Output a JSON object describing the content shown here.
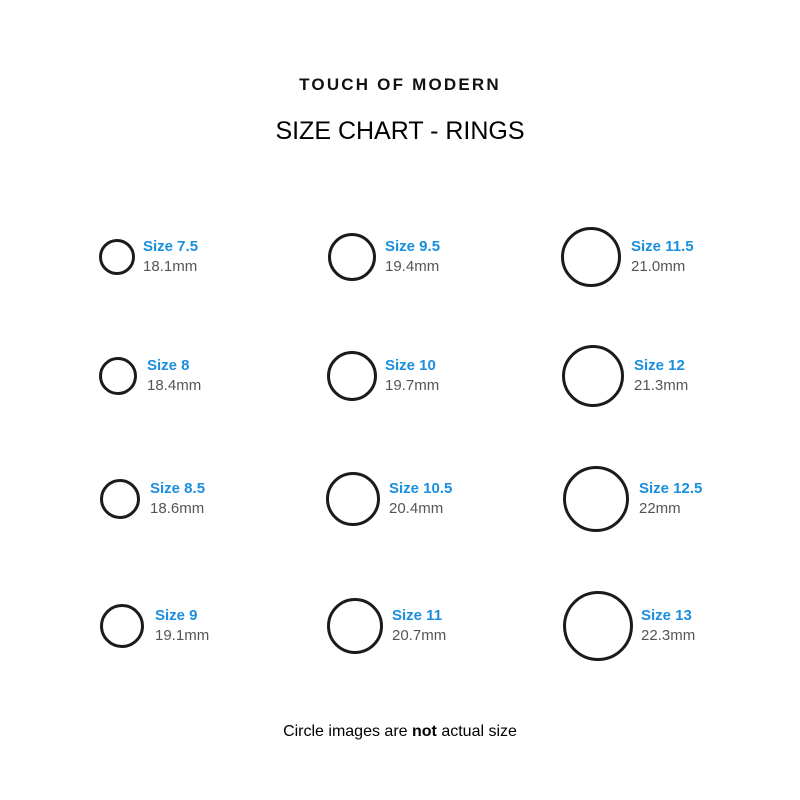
{
  "brand": "TOUCH OF MODERN",
  "title": "SIZE CHART - RINGS",
  "colors": {
    "size_label": "#1a8fe0",
    "mm_label": "#555555",
    "ring": "#1b1b1b"
  },
  "sizes": [
    {
      "size": "Size 7.5",
      "mm": "18.1mm"
    },
    {
      "size": "Size 8",
      "mm": "18.4mm"
    },
    {
      "size": "Size 8.5",
      "mm": "18.6mm"
    },
    {
      "size": "Size 9",
      "mm": "19.1mm"
    },
    {
      "size": "Size 9.5",
      "mm": "19.4mm"
    },
    {
      "size": "Size 10",
      "mm": "19.7mm"
    },
    {
      "size": "Size 10.5",
      "mm": "20.4mm"
    },
    {
      "size": "Size 11",
      "mm": "20.7mm"
    },
    {
      "size": "Size 11.5",
      "mm": "21.0mm"
    },
    {
      "size": "Size 12",
      "mm": "21.3mm"
    },
    {
      "size": "Size 12.5",
      "mm": "22mm"
    },
    {
      "size": "Size 13",
      "mm": "22.3mm"
    }
  ],
  "note": {
    "before": "Circle images are ",
    "bold": "not",
    "after": " actual size"
  }
}
